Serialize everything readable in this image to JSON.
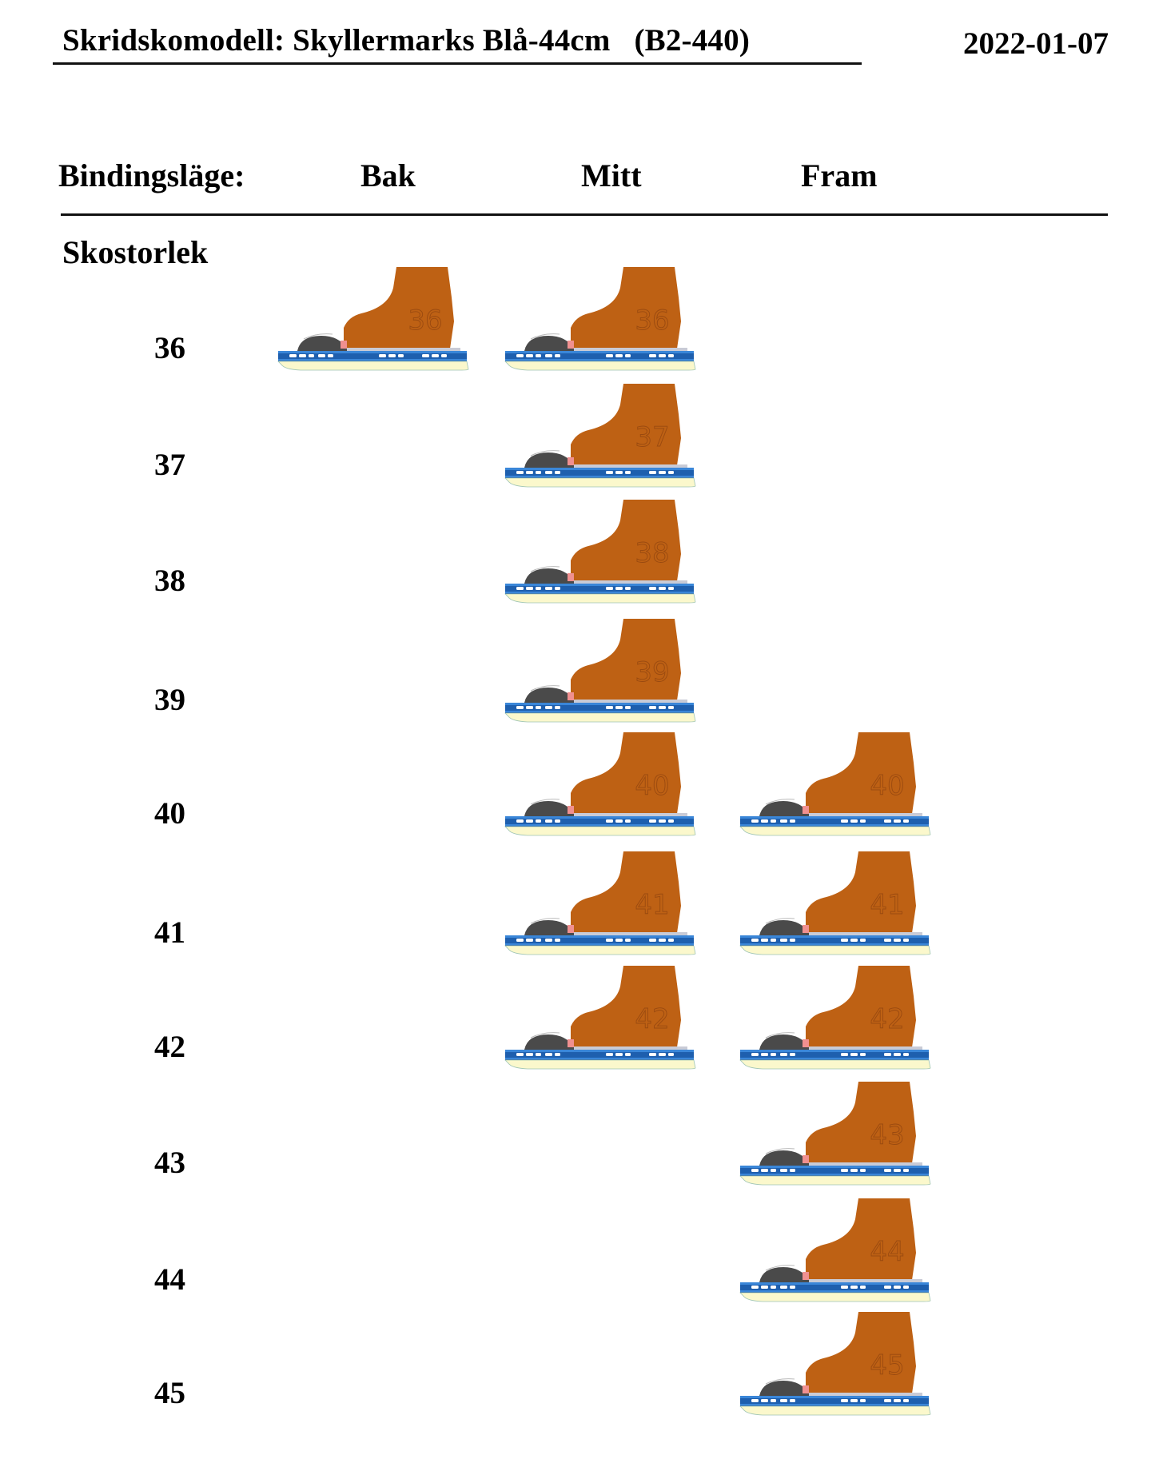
{
  "header": {
    "title": "Skridskomodell: Skyllermarks Blå-44cm   (B2-440)",
    "date": "2022-01-07"
  },
  "table": {
    "binding_label": "Bindingsläge:",
    "columns": [
      "Bak",
      "Mitt",
      "Fram"
    ],
    "row_header": "Skostorlek",
    "rows": [
      {
        "size": "36",
        "positions": [
          "Bak",
          "Mitt"
        ]
      },
      {
        "size": "37",
        "positions": [
          "Mitt"
        ]
      },
      {
        "size": "38",
        "positions": [
          "Mitt"
        ]
      },
      {
        "size": "39",
        "positions": [
          "Mitt"
        ]
      },
      {
        "size": "40",
        "positions": [
          "Mitt",
          "Fram"
        ]
      },
      {
        "size": "41",
        "positions": [
          "Mitt",
          "Fram"
        ]
      },
      {
        "size": "42",
        "positions": [
          "Mitt",
          "Fram"
        ]
      },
      {
        "size": "43",
        "positions": [
          "Fram"
        ]
      },
      {
        "size": "44",
        "positions": [
          "Fram"
        ]
      },
      {
        "size": "45",
        "positions": [
          "Fram"
        ]
      }
    ]
  },
  "colors": {
    "boot": "#BE6114",
    "boot_text": "#9A4A10",
    "blade_blue": "#1E5FAE",
    "blade_blue_light": "#3A86D8",
    "blade_cream": "#FBF8CC",
    "binding_dark": "#4A4A4A"
  }
}
